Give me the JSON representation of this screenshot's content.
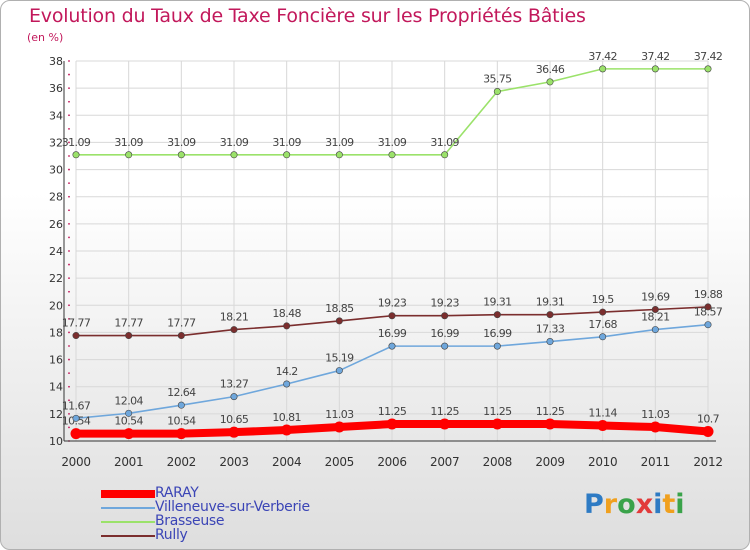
{
  "chart_data": {
    "type": "line",
    "title": "Evolution du Taux de Taxe Foncière sur les Propriétés Bâties",
    "unit_label": "(en %)",
    "x": [
      "2000",
      "2001",
      "2002",
      "2003",
      "2004",
      "2005",
      "2006",
      "2007",
      "2008",
      "2009",
      "2010",
      "2011",
      "2012"
    ],
    "ylim": [
      10,
      38
    ],
    "yticks": [
      10,
      12,
      14,
      16,
      18,
      20,
      22,
      24,
      26,
      28,
      30,
      32,
      34,
      36,
      38
    ],
    "grid": true,
    "legend_position": "bottom-left",
    "series": [
      {
        "name": "RARAY",
        "color": "#ff0000",
        "values": [
          10.54,
          10.54,
          10.54,
          10.65,
          10.81,
          11.03,
          11.25,
          11.25,
          11.25,
          11.25,
          11.14,
          11.03,
          10.7
        ],
        "labels": [
          "10.54",
          "10.54",
          "10.54",
          "10.65",
          "10.81",
          "11.03",
          "11.25",
          "11.25",
          "11.25",
          "11.25",
          "11.14",
          "11.03",
          "10.7"
        ]
      },
      {
        "name": "Villeneuve-sur-Verberie",
        "color": "#6fa7dc",
        "values": [
          11.67,
          12.04,
          12.64,
          13.27,
          14.2,
          15.19,
          16.99,
          16.99,
          16.99,
          17.33,
          17.68,
          18.21,
          18.57
        ],
        "labels": [
          "11.67",
          "12.04",
          "12.64",
          "13.27",
          "14.2",
          "15.19",
          "16.99",
          "16.99",
          "16.99",
          "17.33",
          "17.68",
          "18.21",
          "18.57"
        ]
      },
      {
        "name": "Brasseuse",
        "color": "#9be26a",
        "values": [
          31.09,
          31.09,
          31.09,
          31.09,
          31.09,
          31.09,
          31.09,
          31.09,
          35.75,
          36.46,
          37.42,
          37.42,
          37.42
        ],
        "labels": [
          "31.09",
          "31.09",
          "31.09",
          "31.09",
          "31.09",
          "31.09",
          "31.09",
          "31.09",
          "35.75",
          "36.46",
          "37.42",
          "37.42",
          "37.42"
        ]
      },
      {
        "name": "Rully",
        "color": "#7b2e2e",
        "values": [
          17.77,
          17.77,
          17.77,
          18.21,
          18.48,
          18.85,
          19.23,
          19.23,
          19.31,
          19.31,
          19.5,
          19.69,
          19.88
        ],
        "labels": [
          "17.77",
          "17.77",
          "17.77",
          "18.21",
          "18.48",
          "18.85",
          "19.23",
          "19.23",
          "19.31",
          "19.31",
          "19.5",
          "19.69",
          "19.88"
        ]
      }
    ]
  },
  "logo": {
    "text": "Proxiti",
    "letters": [
      "P",
      "r",
      "o",
      "x",
      "i",
      "t",
      "i"
    ],
    "colors": [
      "#2e7bc4",
      "#f0a01e",
      "#3aa34a",
      "#e23a3a",
      "#2e7bc4",
      "#f0a01e",
      "#3aa34a"
    ]
  }
}
